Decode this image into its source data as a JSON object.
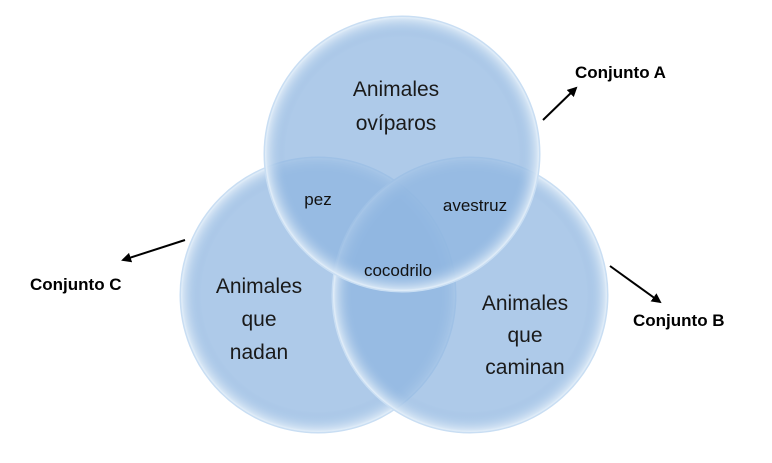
{
  "colors": {
    "circle_fill": "#8fb6e0",
    "circle_edge": "#c9def3",
    "text": "#1a1a1a",
    "arrow": "#000000"
  },
  "sets": {
    "a": {
      "label": "Conjunto A",
      "region_lines": [
        "Animales",
        "ovíparos"
      ]
    },
    "b": {
      "label": "Conjunto B",
      "region_lines": [
        "Animales",
        "que",
        "caminan"
      ]
    },
    "c": {
      "label": "Conjunto C",
      "region_lines": [
        "Animales",
        "que",
        "nadan"
      ]
    }
  },
  "overlaps": {
    "ac": "pez",
    "ab": "avestruz",
    "abc": "cocodrilo"
  }
}
